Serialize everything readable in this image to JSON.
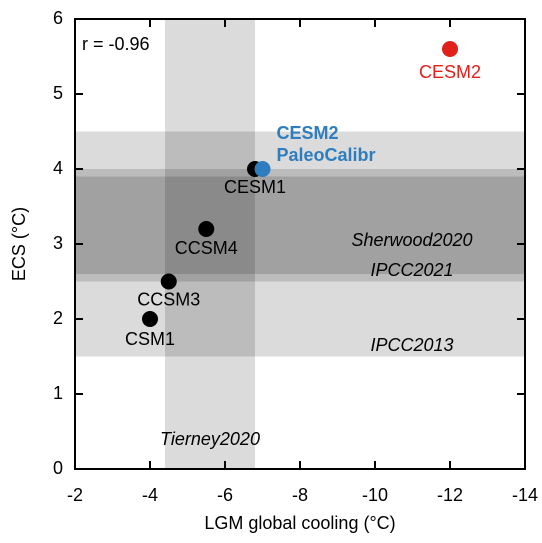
{
  "chart_data": {
    "type": "scatter",
    "xlabel": "LGM global cooling (°C)",
    "ylabel": "ECS (°C)",
    "annotation": "r = -0.96",
    "xlim": [
      -2,
      -14
    ],
    "ylim": [
      0,
      6
    ],
    "xticks": [
      -2,
      -4,
      -6,
      -8,
      -10,
      -12,
      -14
    ],
    "yticks": [
      0,
      1,
      2,
      3,
      4,
      5,
      6
    ],
    "bands": [
      {
        "label": "IPCC2013",
        "axis": "y",
        "range": [
          1.5,
          4.5
        ]
      },
      {
        "label": "IPCC2021",
        "axis": "y",
        "range": [
          2.5,
          4.0
        ]
      },
      {
        "label": "Sherwood2020",
        "axis": "y",
        "range": [
          2.6,
          3.9
        ]
      },
      {
        "label": "Tierney2020",
        "axis": "x",
        "range": [
          -4.4,
          -6.8
        ]
      }
    ],
    "points": [
      {
        "label": "CSM1",
        "x": -4.0,
        "y": 2.0,
        "color": "#000000"
      },
      {
        "label": "CCSM3",
        "x": -4.5,
        "y": 2.5,
        "color": "#000000"
      },
      {
        "label": "CCSM4",
        "x": -5.5,
        "y": 3.2,
        "color": "#000000"
      },
      {
        "label": "CESM1",
        "x": -6.8,
        "y": 4.0,
        "color": "#000000"
      },
      {
        "label": [
          "CESM2",
          "PaleoCalibr"
        ],
        "x": -7.0,
        "y": 4.0,
        "color": "#2e7ebf"
      },
      {
        "label": "CESM2",
        "x": -12.0,
        "y": 5.6,
        "color": "#e0201b"
      }
    ]
  }
}
